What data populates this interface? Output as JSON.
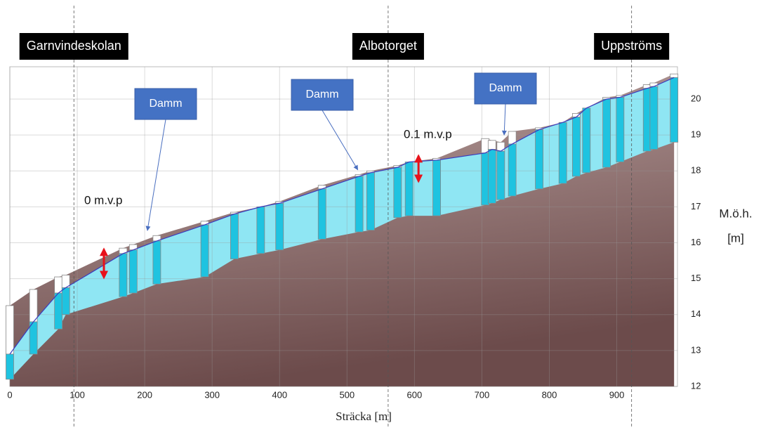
{
  "chart_data": {
    "type": "profile",
    "x_label": "Sträcka [m]",
    "y_label": [
      "M.ö.h.",
      "[m]"
    ],
    "xlim": [
      0,
      990
    ],
    "ylim": [
      12,
      20.9
    ],
    "xticks": [
      0,
      100,
      200,
      300,
      400,
      500,
      600,
      700,
      800,
      900
    ],
    "yticks": [
      12,
      13,
      14,
      15,
      16,
      17,
      18,
      19,
      20
    ],
    "grid": true,
    "x": [
      0,
      35,
      72,
      83,
      168,
      183,
      218,
      289,
      333,
      372,
      400,
      463,
      518,
      535,
      575,
      592,
      633,
      705,
      715,
      728,
      745,
      785,
      820,
      840,
      855,
      885,
      905,
      945,
      955,
      985
    ],
    "ground": {
      "color": "#b59c9a",
      "values": [
        14.25,
        14.7,
        15.05,
        15.1,
        15.85,
        15.95,
        16.2,
        16.6,
        16.85,
        17.0,
        17.15,
        17.6,
        17.9,
        18.0,
        18.15,
        18.25,
        18.35,
        18.9,
        18.85,
        18.8,
        19.1,
        19.2,
        19.35,
        19.6,
        19.75,
        20.05,
        20.1,
        20.4,
        20.45,
        20.7
      ]
    },
    "water_level": {
      "color": "#3b3bbd",
      "values": [
        12.9,
        13.8,
        14.6,
        14.75,
        15.7,
        15.8,
        16.05,
        16.5,
        16.8,
        17.0,
        17.1,
        17.5,
        17.85,
        17.95,
        18.1,
        18.25,
        18.3,
        18.5,
        18.6,
        18.55,
        18.75,
        19.15,
        19.35,
        19.5,
        19.75,
        20.0,
        20.05,
        20.3,
        20.35,
        20.6
      ]
    },
    "band_bottom": {
      "color": "#8fe6f3",
      "values": [
        12.2,
        12.9,
        13.6,
        14.0,
        14.5,
        14.6,
        14.85,
        15.05,
        15.55,
        15.7,
        15.8,
        16.1,
        16.3,
        16.35,
        16.7,
        16.75,
        16.75,
        17.05,
        17.1,
        17.2,
        17.3,
        17.5,
        17.65,
        17.85,
        17.95,
        18.1,
        18.25,
        18.55,
        18.6,
        18.8
      ]
    },
    "well_color": "#1fc3e0",
    "sections": [
      {
        "label": "Garnvindeskolan",
        "x": 95
      },
      {
        "label": "Albotorget",
        "x": 561
      },
      {
        "label": "Uppströms",
        "x": 922
      }
    ],
    "annotations": [
      {
        "text": "Damm",
        "x": 204,
        "y": 16.34
      },
      {
        "text": "Damm",
        "x": 516,
        "y": 18.03
      },
      {
        "text": "Damm",
        "x": 733,
        "y": 19.0
      }
    ],
    "ranges": [
      {
        "text": "0 m.v.p",
        "x": 139.5,
        "low": 15.03,
        "high": 15.82
      },
      {
        "text": "0.1 m.v.p",
        "x": 606,
        "low": 17.71,
        "high": 18.42
      }
    ]
  }
}
